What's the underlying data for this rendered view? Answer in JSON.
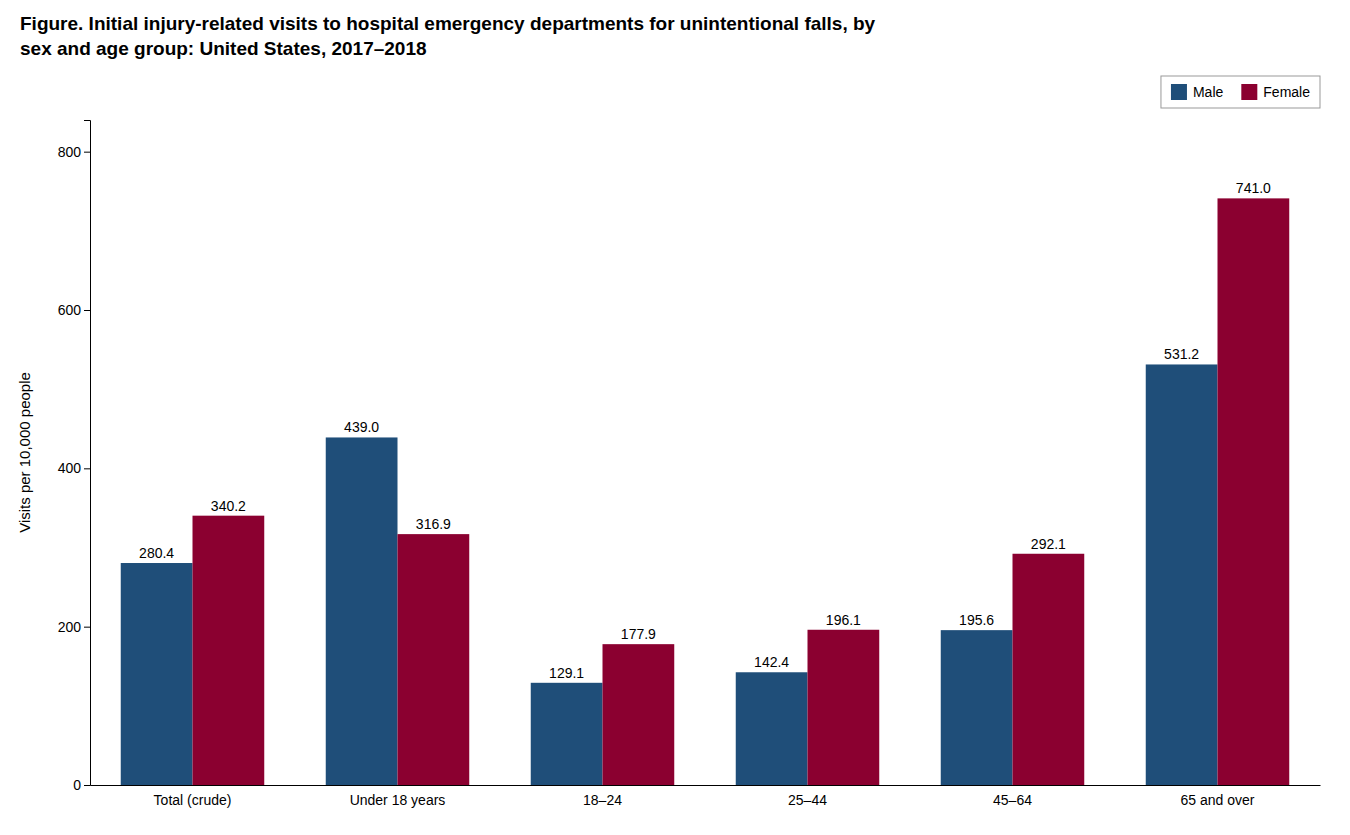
{
  "chart_data": {
    "type": "bar",
    "title": [
      "Figure. Initial injury-related visits to hospital emergency departments for unintentional falls, by",
      "sex and age group: United States, 2017–2018"
    ],
    "categories": [
      "Total (crude)",
      "Under 18 years",
      "18–24",
      "25–44",
      "45–64",
      "65 and over"
    ],
    "series": [
      {
        "name": "Male",
        "color": "#1F4E79",
        "values": [
          280.4,
          439.0,
          129.1,
          142.4,
          195.6,
          531.2
        ],
        "value_labels": [
          "280.4",
          "439.0",
          "129.1",
          "142.4",
          "195.6",
          "531.2"
        ]
      },
      {
        "name": "Female",
        "color": "#8B0030",
        "values": [
          340.2,
          316.9,
          177.9,
          196.1,
          292.1,
          741.0
        ],
        "value_labels": [
          "340.2",
          "316.9",
          "177.9",
          "196.1",
          "292.1",
          "741.0"
        ]
      }
    ],
    "ylabel": "Visits per 10,000 people",
    "ylim": [
      0,
      840
    ],
    "yticks": [
      0,
      200,
      400,
      600,
      800
    ],
    "grid": false,
    "legend": "upper right",
    "data_labels": true
  }
}
